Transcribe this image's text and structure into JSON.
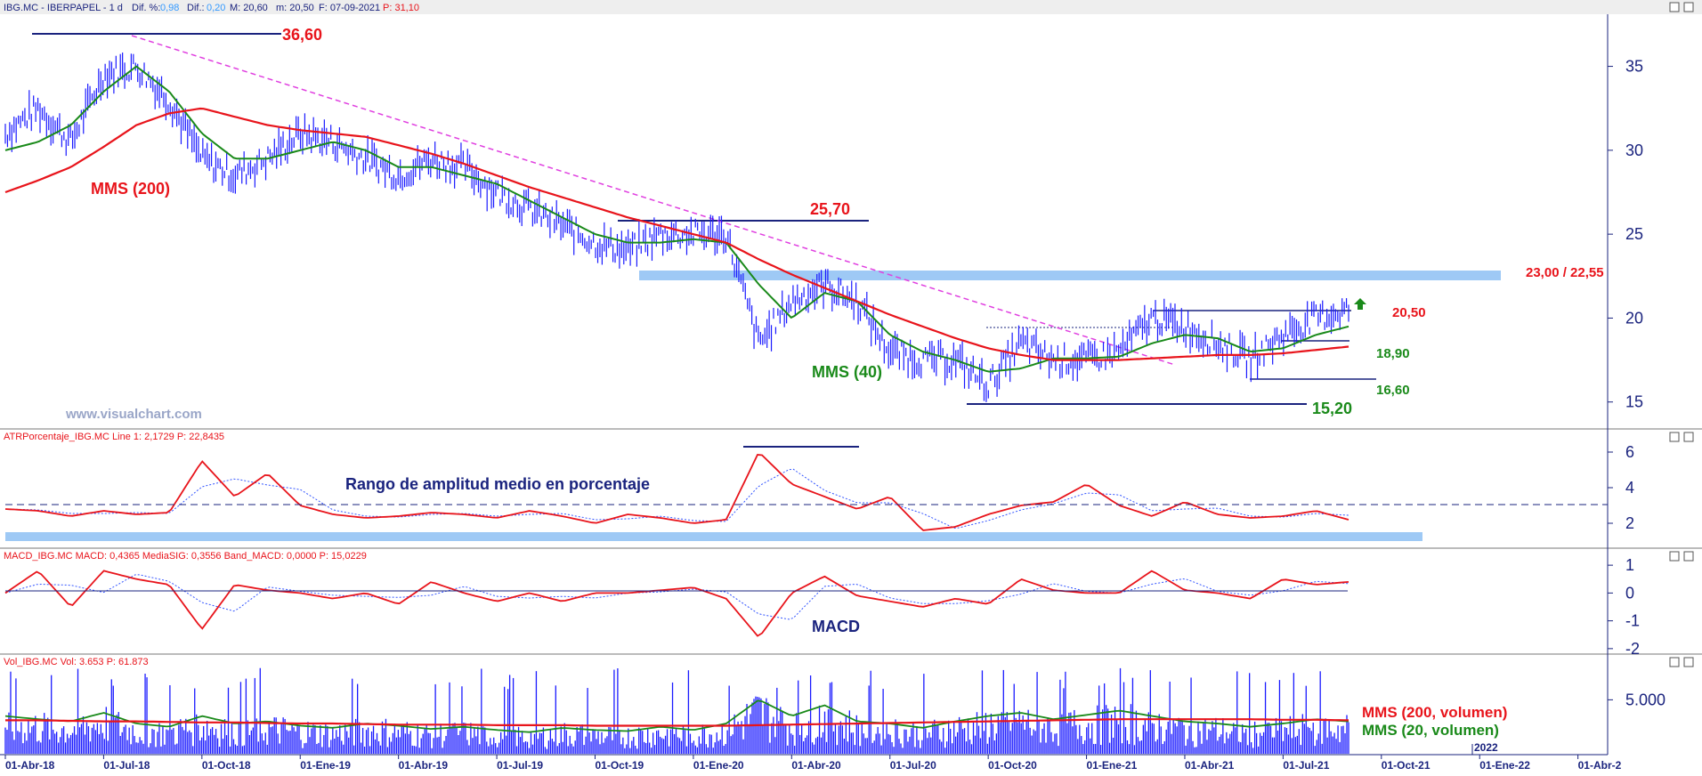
{
  "header": {
    "symbol": "IBG.MC - IBERPAPEL - 1 d",
    "dif_pct_label": "Dif. %:",
    "dif_pct": "0,98",
    "dif_label": "Dif.:",
    "dif": "0,20",
    "max": "M: 20,60",
    "min": "m: 20,50",
    "date": "F: 07-09-2021",
    "price": "P: 31,10"
  },
  "watermark": "www.visualchart.com",
  "colors": {
    "price": "#1a1aff",
    "mms200": "#e8141b",
    "mms40": "#1a8a1a",
    "trend": "#e040e0",
    "zone": "#9ec9f5",
    "navy": "#1a237e"
  },
  "annotations": {
    "high": "36,60",
    "level_2570": "25,70",
    "zone": "23,00 / 22,55",
    "level_2050": "20,50",
    "level_1890": "18,90",
    "level_1660": "16,60",
    "low": "15,20",
    "mms200": "MMS (200)",
    "mms40": "MMS (40)",
    "atr_title": "Rango de amplitud medio en porcentaje",
    "macd_title": "MACD",
    "vol_mms200": "MMS (200, volumen)",
    "vol_mms20": "MMS (20, volumen)"
  },
  "panels": {
    "atr_header": "ATRPorcentaje_IBG.MC Line 1: 2,1729 P: 22,8435",
    "macd_header": "MACD_IBG.MC MACD: 0,4365 MediaSIG: 0,3556 Band_MACD: 0,0000 P: 15,0229",
    "vol_header": "Vol_IBG.MC Vol: 3.653 P: 61.873"
  },
  "x_axis": {
    "labels": [
      "01-Abr-18",
      "01-Jul-18",
      "01-Oct-18",
      "01-Ene-19",
      "01-Abr-19",
      "01-Jul-19",
      "01-Oct-19",
      "01-Ene-20",
      "01-Abr-20",
      "01-Jul-20",
      "01-Oct-20",
      "01-Ene-21",
      "01-Abr-21",
      "01-Jul-21",
      "01-Oct-21",
      "01-Ene-22",
      "01-Abr-2"
    ],
    "year_marker": "2022"
  },
  "chart_data": [
    {
      "type": "line",
      "name_panel": "price",
      "y_ticks": [
        "35",
        "30",
        "25",
        "20",
        "15"
      ],
      "ylim": [
        13.5,
        38
      ],
      "x": [
        "2018-04",
        "2018-05",
        "2018-06",
        "2018-07",
        "2018-08",
        "2018-09",
        "2018-10",
        "2018-11",
        "2018-12",
        "2019-01",
        "2019-02",
        "2019-03",
        "2019-04",
        "2019-05",
        "2019-06",
        "2019-07",
        "2019-08",
        "2019-09",
        "2019-10",
        "2019-11",
        "2019-12",
        "2020-01",
        "2020-02",
        "2020-03",
        "2020-04",
        "2020-05",
        "2020-06",
        "2020-07",
        "2020-08",
        "2020-09",
        "2020-10",
        "2020-11",
        "2020-12",
        "2021-01",
        "2021-02",
        "2021-03",
        "2021-04",
        "2021-05",
        "2021-06",
        "2021-07",
        "2021-08",
        "2021-09"
      ],
      "series": [
        {
          "key": "close",
          "values": [
            31.0,
            32.5,
            30.5,
            34.5,
            35.0,
            33.0,
            29.5,
            28.5,
            29.5,
            31.0,
            30.5,
            29.5,
            28.5,
            29.5,
            29.0,
            27.5,
            26.5,
            25.5,
            24.5,
            24.0,
            25.0,
            25.0,
            25.0,
            18.5,
            21.0,
            22.0,
            21.0,
            18.0,
            17.5,
            17.5,
            16.0,
            18.5,
            17.5,
            17.5,
            18.0,
            20.0,
            19.5,
            18.5,
            17.5,
            19.0,
            20.0,
            20.5
          ]
        },
        {
          "key": "mms40",
          "name": "MMS (40)",
          "values": [
            30.0,
            30.5,
            31.5,
            33.5,
            35.0,
            33.5,
            31.0,
            29.5,
            29.5,
            30.0,
            30.5,
            30.0,
            29.0,
            29.0,
            28.5,
            28.0,
            27.0,
            26.0,
            25.0,
            24.5,
            24.5,
            24.7,
            24.5,
            22.0,
            20.0,
            21.5,
            21.0,
            19.0,
            18.0,
            17.5,
            16.8,
            17.0,
            17.6,
            17.6,
            17.7,
            18.5,
            19.0,
            18.8,
            18.0,
            18.2,
            19.0,
            19.5
          ]
        },
        {
          "key": "mms200",
          "name": "MMS (200)",
          "values": [
            27.5,
            28.2,
            29.0,
            30.2,
            31.5,
            32.2,
            32.5,
            32.0,
            31.5,
            31.2,
            31.0,
            30.8,
            30.3,
            29.8,
            29.2,
            28.5,
            27.8,
            27.2,
            26.6,
            26.0,
            25.5,
            25.0,
            24.5,
            23.5,
            22.6,
            21.8,
            21.0,
            20.2,
            19.5,
            18.8,
            18.2,
            17.8,
            17.5,
            17.5,
            17.5,
            17.6,
            17.7,
            17.8,
            17.8,
            17.9,
            18.1,
            18.3
          ]
        }
      ]
    },
    {
      "type": "line",
      "name_panel": "atr",
      "y_ticks": [
        "6",
        "4",
        "2"
      ],
      "ylim": [
        0.8,
        6.5
      ],
      "values": [
        2.8,
        2.7,
        2.4,
        2.7,
        2.5,
        2.6,
        5.5,
        3.5,
        4.8,
        3.0,
        2.5,
        2.3,
        2.4,
        2.6,
        2.5,
        2.3,
        2.7,
        2.4,
        2.0,
        2.5,
        2.3,
        2.0,
        2.2,
        6.0,
        4.2,
        3.5,
        2.8,
        3.5,
        1.6,
        1.8,
        2.5,
        3.0,
        3.2,
        4.2,
        3.0,
        2.4,
        3.2,
        2.5,
        2.3,
        2.4,
        2.7,
        2.2
      ]
    },
    {
      "type": "line",
      "name_panel": "macd",
      "y_ticks": [
        "1",
        "0",
        "-1",
        "-2"
      ],
      "ylim": [
        -2.1,
        1.1
      ],
      "values": [
        0.0,
        0.8,
        -0.5,
        0.8,
        0.5,
        0.3,
        -1.3,
        0.3,
        0.1,
        0.0,
        -0.2,
        0.0,
        -0.4,
        0.4,
        0.0,
        -0.3,
        0.0,
        -0.3,
        0.0,
        0.0,
        0.1,
        0.2,
        -0.2,
        -1.6,
        0.0,
        0.6,
        -0.1,
        -0.3,
        -0.5,
        -0.2,
        -0.4,
        0.5,
        0.1,
        0.0,
        0.0,
        0.8,
        0.1,
        0.0,
        -0.2,
        0.5,
        0.3,
        0.4
      ]
    },
    {
      "type": "bar",
      "name_panel": "volume",
      "y_ticks": [
        "5.000"
      ],
      "ylim": [
        0,
        8000
      ],
      "mms200": [
        3100,
        3100,
        3050,
        3000,
        3000,
        2950,
        2900,
        2900,
        2850,
        2800,
        2800,
        2750,
        2700,
        2700,
        2700,
        2650,
        2650,
        2650,
        2600,
        2600,
        2600,
        2600,
        2600,
        2650,
        2700,
        2750,
        2800,
        2850,
        2900,
        2950,
        3000,
        3050,
        3100,
        3150,
        3200,
        3200,
        3200,
        3200,
        3200,
        3150,
        3150,
        3100
      ],
      "mms20": [
        3500,
        3200,
        3000,
        3800,
        2800,
        2500,
        3500,
        2800,
        3000,
        2600,
        2400,
        2800,
        2600,
        2300,
        2500,
        2200,
        2000,
        2400,
        2200,
        2100,
        2500,
        2200,
        2800,
        5000,
        3500,
        4500,
        3000,
        2800,
        2400,
        3000,
        3500,
        3800,
        3200,
        3600,
        4000,
        3500,
        3000,
        2800,
        2500,
        2800,
        3200,
        3000
      ]
    }
  ]
}
